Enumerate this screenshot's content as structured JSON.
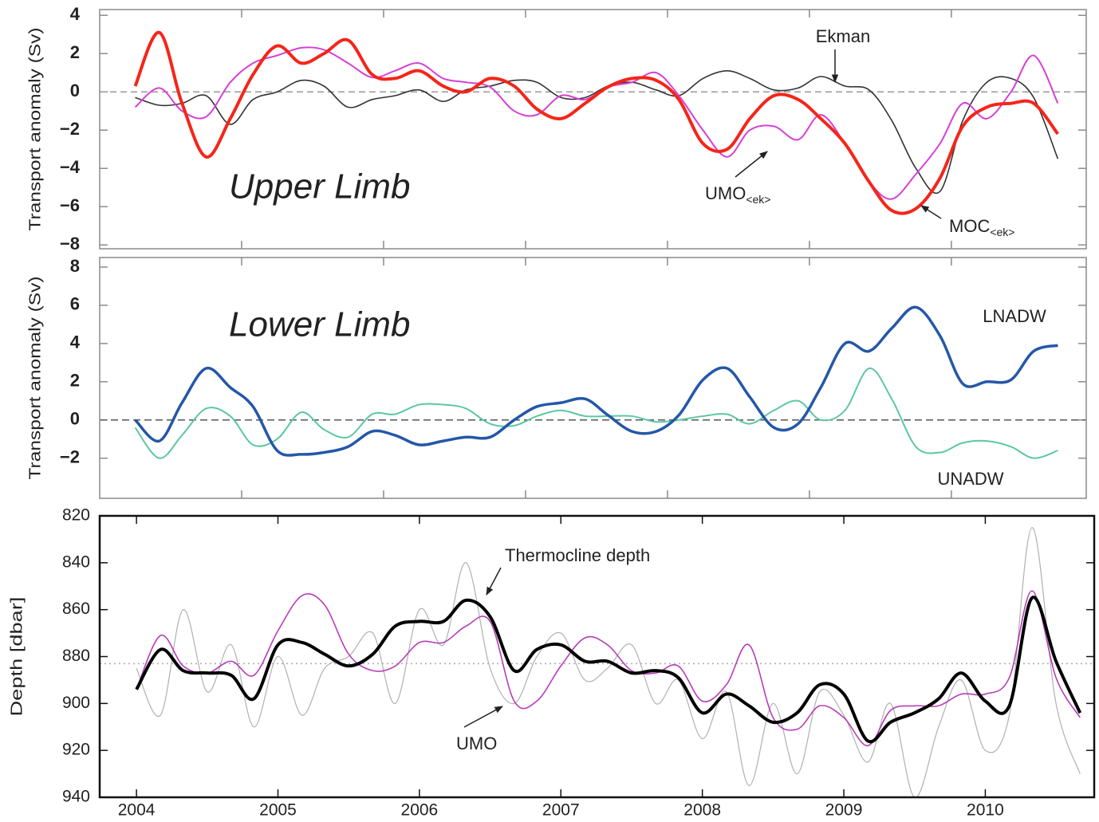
{
  "chart_data": [
    {
      "type": "line",
      "panel_label": "Upper Limb",
      "ylabel": "Transport anomaly (Sv)",
      "xlim": [
        2004,
        2010.95
      ],
      "xticks": [
        2005,
        2006,
        2007,
        2008,
        2009,
        2010
      ],
      "ylim": [
        -8.2,
        4.3
      ],
      "yticks": [
        4,
        2,
        0,
        {
          "value": -2,
          "label": "−2"
        },
        {
          "value": -4,
          "label": "−4"
        },
        {
          "value": -6,
          "label": "−6"
        },
        {
          "value": -8,
          "label": "−8"
        }
      ],
      "reference_line": 0,
      "x": [
        2004.25,
        2004.42,
        2004.58,
        2004.75,
        2004.92,
        2005.08,
        2005.25,
        2005.42,
        2005.58,
        2005.75,
        2005.92,
        2006.08,
        2006.25,
        2006.42,
        2006.58,
        2006.75,
        2006.92,
        2007.08,
        2007.25,
        2007.42,
        2007.58,
        2007.75,
        2007.92,
        2008.08,
        2008.25,
        2008.42,
        2008.58,
        2008.75,
        2008.92,
        2009.08,
        2009.25,
        2009.42,
        2009.58,
        2009.75,
        2009.92,
        2010.08,
        2010.25,
        2010.42,
        2010.58,
        2010.75
      ],
      "series": [
        {
          "name": "Ekman",
          "color": "#333333",
          "width": 1.6,
          "values": [
            -0.3,
            -0.7,
            -0.6,
            -0.2,
            -1.7,
            -0.4,
            0,
            0.6,
            0.3,
            -0.8,
            -0.4,
            -0.2,
            0.1,
            -0.5,
            0.1,
            0.3,
            0.6,
            0.5,
            -0.3,
            -0.3,
            0.3,
            0.5,
            0.1,
            -0.2,
            0.7,
            1.1,
            0.7,
            0.1,
            0.2,
            0.8,
            0.3,
            0.1,
            -1.5,
            -4.0,
            -5.2,
            -1.5,
            0.5,
            0.7,
            -0.3,
            -3.5
          ]
        },
        {
          "name": "UMO",
          "sub": "<ek>",
          "color": "#d63fd6",
          "width": 2,
          "values": [
            -0.8,
            0.2,
            -1.0,
            -1.3,
            0.5,
            1.5,
            1.9,
            2.3,
            2.2,
            1.5,
            0.75,
            1.1,
            1.5,
            0.7,
            0.5,
            0.25,
            -1.0,
            -1.2,
            -0.2,
            -0.4,
            0.25,
            0.5,
            1.0,
            -0.2,
            -2.0,
            -3.4,
            -2.0,
            -1.8,
            -2.5,
            -1.2,
            -2.7,
            -4.7,
            -5.6,
            -4.3,
            -2.7,
            -0.6,
            -1.4,
            0,
            1.9,
            -0.6
          ]
        },
        {
          "name": "MOC",
          "sub": "<ek>",
          "color": "#f5251a",
          "width": 4,
          "values": [
            0.3,
            3.1,
            -0.6,
            -3.4,
            -1.4,
            0.9,
            2.4,
            1.5,
            2.0,
            2.7,
            0.9,
            0.7,
            1.1,
            0.3,
            0,
            0.7,
            0.3,
            -0.9,
            -1.4,
            -0.6,
            0.25,
            0.7,
            0.6,
            -0.4,
            -2.7,
            -3.0,
            -1.4,
            -0.2,
            -0.4,
            -1.4,
            -2.7,
            -4.7,
            -6.2,
            -6.1,
            -4.5,
            -1.8,
            -0.8,
            -0.6,
            -0.6,
            -2.2
          ]
        }
      ]
    },
    {
      "type": "line",
      "panel_label": "Lower Limb",
      "ylabel": "Transport anomaly (Sv)",
      "xlim": [
        2004,
        2010.95
      ],
      "xticks": [
        2005,
        2006,
        2007,
        2008,
        2009,
        2010
      ],
      "ylim": [
        -4.1,
        8.5
      ],
      "yticks": [
        8,
        6,
        4,
        2,
        0,
        {
          "value": -2,
          "label": "−2"
        }
      ],
      "reference_line": 0,
      "x": [
        2004.25,
        2004.42,
        2004.58,
        2004.75,
        2004.92,
        2005.08,
        2005.25,
        2005.42,
        2005.58,
        2005.75,
        2005.92,
        2006.08,
        2006.25,
        2006.42,
        2006.58,
        2006.75,
        2006.92,
        2007.08,
        2007.25,
        2007.42,
        2007.58,
        2007.75,
        2007.92,
        2008.08,
        2008.25,
        2008.42,
        2008.58,
        2008.75,
        2008.92,
        2009.08,
        2009.25,
        2009.42,
        2009.58,
        2009.75,
        2009.92,
        2010.08,
        2010.25,
        2010.42,
        2010.58,
        2010.75
      ],
      "series": [
        {
          "name": "UNADW",
          "color": "#5cc7a3",
          "width": 2,
          "values": [
            -0.4,
            -2.0,
            -0.8,
            0.6,
            0.2,
            -1.3,
            -1.0,
            0.4,
            -0.5,
            -0.9,
            0.3,
            0.3,
            0.8,
            0.8,
            0.6,
            -0.2,
            -0.3,
            0.2,
            0.5,
            0.2,
            0.2,
            0.2,
            -0.1,
            0,
            0.2,
            0.3,
            -0.2,
            0.5,
            1.0,
            0,
            0.5,
            2.7,
            1.1,
            -1.4,
            -1.7,
            -1.2,
            -1.1,
            -1.4,
            -2.0,
            -1.6
          ]
        },
        {
          "name": "LNADW",
          "color": "#2457a8",
          "width": 3.5,
          "values": [
            0,
            -1.1,
            0.9,
            2.7,
            1.7,
            0.7,
            -1.6,
            -1.8,
            -1.7,
            -1.4,
            -0.6,
            -0.8,
            -1.3,
            -1.1,
            -0.9,
            -0.9,
            0,
            0.7,
            0.9,
            1.1,
            0.25,
            -0.6,
            -0.6,
            0.25,
            2.1,
            2.7,
            1.2,
            -0.4,
            -0.2,
            1.7,
            4.0,
            3.6,
            4.8,
            5.9,
            4.4,
            1.9,
            2.0,
            2.1,
            3.6,
            3.9
          ]
        }
      ]
    },
    {
      "type": "line",
      "ylabel": "Depth [dbar]",
      "xlim": [
        2003.74,
        2010.77
      ],
      "xticks": [
        2004,
        2005,
        2006,
        2007,
        2008,
        2009,
        2010
      ],
      "ylim": [
        820,
        940
      ],
      "y_inverted": true,
      "yticks": [
        820,
        840,
        860,
        880,
        900,
        920,
        940
      ],
      "reference_line": 883,
      "x": [
        2004,
        2004.17,
        2004.33,
        2004.5,
        2004.67,
        2004.83,
        2005,
        2005.17,
        2005.33,
        2005.5,
        2005.67,
        2005.83,
        2006,
        2006.17,
        2006.33,
        2006.5,
        2006.67,
        2006.83,
        2007,
        2007.17,
        2007.33,
        2007.5,
        2007.67,
        2007.83,
        2008,
        2008.17,
        2008.33,
        2008.5,
        2008.67,
        2008.83,
        2009,
        2009.17,
        2009.33,
        2009.5,
        2009.67,
        2009.83,
        2010,
        2010.17,
        2010.33,
        2010.5,
        2010.67
      ],
      "series": [
        {
          "color": "#b0b0b0",
          "width": 1.2,
          "values": [
            885,
            905,
            860,
            895,
            875,
            910,
            880,
            905,
            885,
            880,
            870,
            900,
            860,
            875,
            840,
            885,
            900,
            880,
            870,
            890,
            885,
            875,
            900,
            890,
            915,
            895,
            935,
            900,
            930,
            895,
            905,
            925,
            900,
            940,
            910,
            890,
            920,
            905,
            825,
            900,
            930
          ]
        },
        {
          "name": "UMO",
          "color": "#b83cb8",
          "width": 1.6,
          "values": [
            894,
            871,
            884,
            887,
            882,
            888,
            869,
            854,
            858,
            879,
            886,
            884,
            874,
            874,
            867,
            865,
            899,
            899,
            884,
            872,
            875,
            886,
            887,
            884,
            899,
            892,
            875,
            906,
            911,
            901,
            906,
            918,
            903,
            901,
            901,
            896,
            896,
            889,
            852,
            889,
            906
          ]
        },
        {
          "name": "Thermocline depth",
          "color": "#000000",
          "width": 4,
          "values": [
            894,
            877,
            886,
            887,
            888,
            898,
            875,
            874,
            879,
            884,
            879,
            867,
            865,
            865,
            856,
            863,
            886,
            877,
            875,
            882,
            882,
            887,
            886,
            889,
            904,
            896,
            901,
            908,
            904,
            892,
            896,
            916,
            908,
            904,
            898,
            887,
            899,
            901,
            855,
            882,
            904
          ]
        }
      ]
    }
  ]
}
